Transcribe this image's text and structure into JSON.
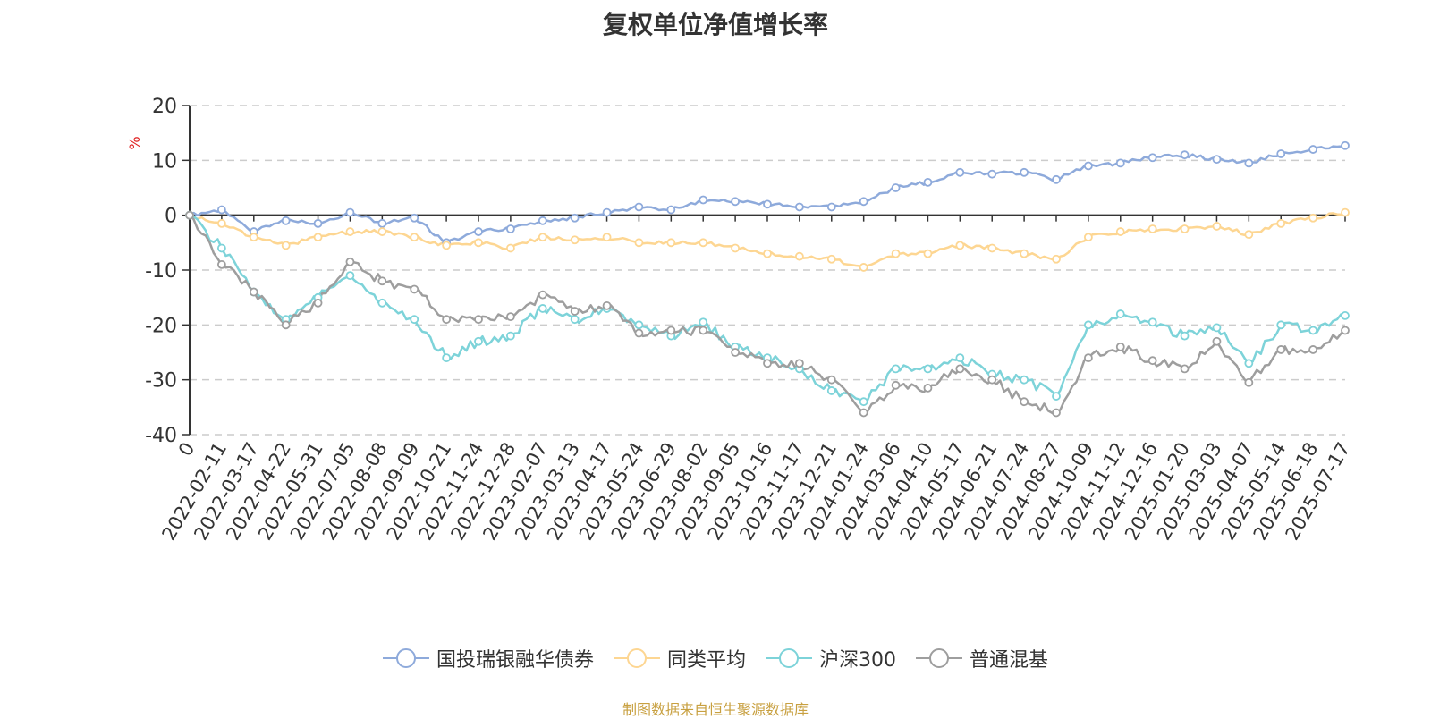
{
  "title": "复权单位净值增长率",
  "source": "制图数据来自恒生聚源数据库",
  "chart_data": {
    "type": "line",
    "ylabel": "%",
    "ylim": [
      -40,
      20
    ],
    "yticks": [
      20,
      10,
      0,
      -10,
      -20,
      -30,
      -40
    ],
    "categories": [
      "0",
      "2022-02-11",
      "2022-03-17",
      "2022-04-22",
      "2022-05-31",
      "2022-07-05",
      "2022-08-08",
      "2022-09-09",
      "2022-10-21",
      "2022-11-24",
      "2022-12-28",
      "2023-02-07",
      "2023-03-13",
      "2023-04-17",
      "2023-05-24",
      "2023-06-29",
      "2023-08-02",
      "2023-09-05",
      "2023-10-16",
      "2023-11-17",
      "2023-12-21",
      "2024-01-24",
      "2024-03-06",
      "2024-04-10",
      "2024-05-17",
      "2024-06-21",
      "2024-07-24",
      "2024-08-27",
      "2024-10-09",
      "2024-11-12",
      "2024-12-16",
      "2025-01-20",
      "2025-03-03",
      "2025-04-07",
      "2025-05-14",
      "2025-06-18",
      "2025-07-17"
    ],
    "grid": true,
    "legend_position": "bottom",
    "series": [
      {
        "name": "国投瑞银融华债券",
        "color": "#8eaadb",
        "values": [
          0,
          1.0,
          -3.0,
          -1.0,
          -1.5,
          0.5,
          -1.5,
          -0.5,
          -5.0,
          -3.0,
          -2.5,
          -1.0,
          -0.5,
          0.5,
          1.5,
          1.0,
          2.8,
          2.5,
          2.0,
          1.5,
          1.5,
          2.5,
          5.0,
          6.0,
          7.8,
          7.5,
          7.8,
          6.5,
          9.0,
          9.5,
          10.5,
          11.0,
          10.2,
          9.5,
          11.2,
          12.0,
          12.7
        ]
      },
      {
        "name": "同类平均",
        "color": "#fdd692",
        "values": [
          0,
          -1.5,
          -4.0,
          -5.5,
          -4.0,
          -3.0,
          -3.0,
          -4.0,
          -5.5,
          -5.0,
          -6.0,
          -4.0,
          -4.5,
          -4.0,
          -5.0,
          -5.0,
          -5.0,
          -6.0,
          -7.0,
          -7.5,
          -8.0,
          -9.5,
          -7.0,
          -7.0,
          -5.5,
          -6.0,
          -7.0,
          -8.0,
          -4.0,
          -3.0,
          -2.5,
          -2.5,
          -2.0,
          -3.5,
          -1.5,
          -0.5,
          0.5
        ]
      },
      {
        "name": "沪深300",
        "color": "#7dd3d9",
        "values": [
          0,
          -6.0,
          -14.0,
          -19.0,
          -15.0,
          -11.0,
          -16.0,
          -19.0,
          -26.0,
          -23.0,
          -22.0,
          -17.0,
          -19.0,
          -17.0,
          -20.0,
          -22.0,
          -19.5,
          -24.0,
          -26.0,
          -28.0,
          -32.0,
          -34.0,
          -28.0,
          -28.0,
          -26.0,
          -29.0,
          -30.0,
          -33.0,
          -20.0,
          -18.0,
          -19.5,
          -22.0,
          -20.5,
          -27.0,
          -20.0,
          -21.0,
          -18.3
        ]
      },
      {
        "name": "普通混基",
        "color": "#9e9e9e",
        "values": [
          0,
          -9.0,
          -14.0,
          -20.0,
          -16.0,
          -8.5,
          -12.0,
          -13.5,
          -19.0,
          -19.0,
          -18.5,
          -14.5,
          -17.5,
          -16.5,
          -21.5,
          -21.0,
          -21.0,
          -25.0,
          -27.0,
          -27.0,
          -30.0,
          -36.0,
          -31.0,
          -31.5,
          -28.0,
          -30.0,
          -34.0,
          -36.0,
          -26.0,
          -24.0,
          -26.5,
          -28.0,
          -23.0,
          -30.5,
          -24.5,
          -24.5,
          -21.0
        ]
      }
    ]
  }
}
